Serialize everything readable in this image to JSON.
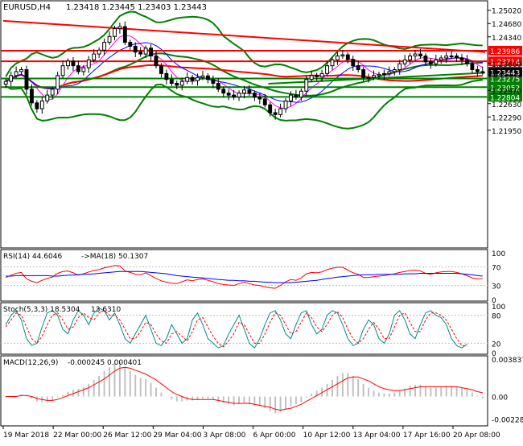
{
  "header": {
    "title": "EURUSD,H4",
    "ohlc": "1.23418 1.23445 1.23403 1.23443"
  },
  "chart_data": [
    {
      "type": "candlestick",
      "title": "EURUSD,H4",
      "price_ylim": [
        1.19,
        1.252
      ],
      "axis_ticks": [
        "1.25020",
        "1.24680",
        "1.24340",
        "1.23986",
        "1.23714",
        "1.23660",
        "1.23443",
        "1.23275",
        "1.23052",
        "1.22970",
        "1.22804",
        "1.22630",
        "1.22290",
        "1.21950"
      ],
      "x_tick_labels": [
        "19 Mar 2018",
        "22 Mar 00:00",
        "26 Mar 12:00",
        "29 Mar 04:00",
        "3 Apr 08:00",
        "6 Apr 00:00",
        "10 Apr 12:00",
        "13 Apr 04:00",
        "17 Apr 16:00",
        "20 Apr 08:00"
      ],
      "levels": [
        {
          "label": "1.23986",
          "value": 1.23986,
          "color": "#ff0000"
        },
        {
          "label": "1.23714",
          "value": 1.23714,
          "color": "#ff0000"
        },
        {
          "label": "1.23275",
          "value": 1.23275,
          "color": "#008000"
        },
        {
          "label": "1.23052",
          "value": 1.23052,
          "color": "#008000"
        },
        {
          "label": "1.22804",
          "value": 1.22804,
          "color": "#008000"
        }
      ],
      "current_price": {
        "label": "1.23443",
        "value": 1.23443
      },
      "trend_line": {
        "x": [
          0,
          100
        ],
        "y": [
          1.2475,
          1.2395
        ],
        "color": "#ff0000"
      },
      "support_line": {
        "x": [
          55,
          100
        ],
        "y": [
          1.2314,
          1.2342
        ],
        "color": "#008000"
      },
      "close": [
        1.232,
        1.2335,
        1.2345,
        1.235,
        1.23,
        1.2265,
        1.225,
        1.227,
        1.2285,
        1.23,
        1.2335,
        1.236,
        1.2372,
        1.236,
        1.2345,
        1.2355,
        1.2375,
        1.239,
        1.24,
        1.242,
        1.2435,
        1.2455,
        1.246,
        1.242,
        1.241,
        1.2395,
        1.239,
        1.2405,
        1.2385,
        1.236,
        1.234,
        1.2325,
        1.2315,
        1.231,
        1.232,
        1.233,
        1.2322,
        1.233,
        1.2334,
        1.2325,
        1.2315,
        1.23,
        1.229,
        1.2285,
        1.228,
        1.229,
        1.2298,
        1.229,
        1.228,
        1.2275,
        1.226,
        1.224,
        1.2235,
        1.225,
        1.227,
        1.2285,
        1.228,
        1.2295,
        1.2325,
        1.2335,
        1.2332,
        1.234,
        1.236,
        1.2375,
        1.2385,
        1.2388,
        1.2376,
        1.236,
        1.235,
        1.233,
        1.233,
        1.2335,
        1.2338,
        1.234,
        1.2345,
        1.235,
        1.2365,
        1.2375,
        1.2385,
        1.239,
        1.2385,
        1.237,
        1.2365,
        1.2375,
        1.238,
        1.2385,
        1.2385,
        1.238,
        1.2375,
        1.2365,
        1.235,
        1.2345,
        1.2344
      ],
      "line_colors": {
        "up": "#000000",
        "down": "#000000",
        "sma": "#008000",
        "bands": "#008000",
        "ema": "#ff0000"
      }
    },
    {
      "type": "line",
      "title": "RSI(14) 44.6046",
      "subtitle": "->MA(18) 50.1307",
      "ylim": [
        0,
        100
      ],
      "ticks": [
        "100",
        "70",
        "30",
        "0"
      ],
      "series": [
        {
          "name": "RSI(14)",
          "color": "#ff0000",
          "values": [
            47,
            52,
            56,
            58,
            44,
            39,
            36,
            41,
            45,
            48,
            56,
            60,
            61,
            57,
            52,
            55,
            59,
            62,
            64,
            68,
            70,
            73,
            72,
            61,
            58,
            54,
            53,
            57,
            51,
            45,
            40,
            37,
            35,
            34,
            38,
            42,
            40,
            43,
            44,
            41,
            38,
            34,
            32,
            31,
            30,
            34,
            37,
            34,
            31,
            30,
            27,
            25,
            24,
            30,
            38,
            43,
            41,
            46,
            55,
            58,
            57,
            59,
            64,
            67,
            69,
            69,
            63,
            57,
            54,
            47,
            47,
            49,
            50,
            51,
            53,
            55,
            58,
            60,
            62,
            63,
            61,
            56,
            54,
            57,
            59,
            60,
            60,
            58,
            55,
            51,
            46,
            44,
            44.6
          ]
        },
        {
          "name": "MA(18)",
          "color": "#0000ff",
          "values": [
            50,
            50,
            51,
            51,
            51,
            51,
            51,
            51,
            51,
            50,
            50,
            51,
            52,
            52,
            53,
            54,
            54,
            55,
            56,
            57,
            58,
            59,
            60,
            60,
            60,
            60,
            60,
            59,
            58,
            57,
            56,
            55,
            53,
            51,
            50,
            49,
            48,
            47,
            46,
            45,
            44,
            43,
            42,
            41,
            41,
            40,
            40,
            39,
            39,
            38,
            37,
            37,
            36,
            36,
            36,
            36,
            37,
            38,
            39,
            40,
            41,
            43,
            45,
            46,
            48,
            49,
            50,
            51,
            52,
            53,
            53,
            53,
            54,
            54,
            54,
            54,
            54,
            55,
            55,
            55,
            56,
            56,
            56,
            56,
            56,
            56,
            56,
            56,
            55,
            54,
            53,
            51,
            50.1
          ]
        }
      ]
    },
    {
      "type": "line",
      "title": "Stoch(5,3,3) 18.5304",
      "subtitle": "13.6310",
      "ylim": [
        0,
        100
      ],
      "ticks": [
        "100",
        "80",
        "20",
        "0"
      ],
      "series": [
        {
          "name": "%K",
          "color": "#008b8b",
          "values": [
            60,
            80,
            90,
            70,
            30,
            15,
            20,
            55,
            85,
            90,
            80,
            50,
            40,
            70,
            90,
            80,
            60,
            85,
            95,
            90,
            70,
            85,
            60,
            30,
            20,
            40,
            60,
            80,
            50,
            20,
            15,
            30,
            60,
            40,
            20,
            30,
            70,
            85,
            60,
            30,
            20,
            10,
            15,
            40,
            60,
            80,
            50,
            20,
            10,
            30,
            60,
            85,
            90,
            70,
            40,
            30,
            60,
            85,
            90,
            60,
            40,
            50,
            80,
            90,
            85,
            60,
            30,
            15,
            20,
            50,
            70,
            60,
            30,
            20,
            40,
            80,
            90,
            70,
            40,
            30,
            60,
            85,
            90,
            80,
            75,
            60,
            30,
            15,
            10,
            18.5
          ]
        },
        {
          "name": "%D",
          "color": "#ff0000",
          "values": [
            55,
            70,
            85,
            80,
            55,
            30,
            20,
            35,
            60,
            80,
            85,
            70,
            50,
            55,
            75,
            85,
            75,
            70,
            85,
            90,
            80,
            80,
            70,
            50,
            30,
            30,
            45,
            65,
            60,
            40,
            25,
            20,
            40,
            45,
            35,
            25,
            45,
            70,
            75,
            55,
            35,
            20,
            12,
            25,
            40,
            65,
            60,
            40,
            20,
            20,
            40,
            65,
            85,
            80,
            60,
            40,
            45,
            65,
            85,
            75,
            55,
            45,
            60,
            80,
            88,
            75,
            50,
            30,
            20,
            30,
            50,
            65,
            50,
            30,
            30,
            55,
            80,
            85,
            65,
            45,
            45,
            70,
            85,
            85,
            80,
            70,
            50,
            30,
            15,
            13.6
          ]
        }
      ]
    },
    {
      "type": "histogram",
      "title": "MACD(12,26,9)",
      "subtitle": "-0.000245 0.000401",
      "ylim": [
        -0.00284,
        0.003837
      ],
      "ticks": [
        "0.003837",
        "0.00",
        "-0.002284"
      ],
      "histogram": [
        -0.0001,
        0,
        0.0001,
        0.0002,
        0.0001,
        -0.0002,
        -0.0005,
        -0.0006,
        -0.0005,
        -0.0004,
        -0.0001,
        0.0002,
        0.0005,
        0.0007,
        0.0008,
        0.001,
        0.0013,
        0.0017,
        0.0021,
        0.0026,
        0.003,
        0.0034,
        0.0035,
        0.003,
        0.0026,
        0.0022,
        0.0019,
        0.0018,
        0.0014,
        0.0009,
        0.0004,
        0,
        -0.0003,
        -0.0005,
        -0.0005,
        -0.0004,
        -0.0004,
        -0.0003,
        -0.0002,
        -0.0002,
        -0.0003,
        -0.0005,
        -0.0007,
        -0.0008,
        -0.0009,
        -0.0008,
        -0.0007,
        -0.0008,
        -0.0009,
        -0.001,
        -0.0012,
        -0.0015,
        -0.0017,
        -0.0016,
        -0.0013,
        -0.001,
        -0.0008,
        -0.0006,
        -0.0001,
        0.0003,
        0.0006,
        0.0009,
        0.0013,
        0.0017,
        0.0021,
        0.0024,
        0.0024,
        0.0021,
        0.0018,
        0.0013,
        0.0009,
        0.0006,
        0.0004,
        0.0003,
        0.0003,
        0.0004,
        0.0006,
        0.0008,
        0.0011,
        0.0012,
        0.0012,
        0.001,
        0.0009,
        0.0009,
        0.001,
        0.0011,
        0.0011,
        0.001,
        0.0009,
        0.0007,
        0.0004,
        0.0001,
        -0.0002
      ],
      "signal": {
        "name": "Signal",
        "color": "#ff0000",
        "values": [
          0,
          0,
          0,
          0.0001,
          0.0001,
          0,
          -0.0002,
          -0.0003,
          -0.0004,
          -0.0004,
          -0.0003,
          -0.0001,
          0.0001,
          0.0003,
          0.0005,
          0.0007,
          0.0009,
          0.0012,
          0.0015,
          0.0018,
          0.0022,
          0.0026,
          0.0029,
          0.003,
          0.0029,
          0.0027,
          0.0025,
          0.0023,
          0.002,
          0.0017,
          0.0013,
          0.0009,
          0.0005,
          0.0002,
          0,
          -0.0002,
          -0.0003,
          -0.0003,
          -0.0003,
          -0.0003,
          -0.0003,
          -0.0004,
          -0.0005,
          -0.0006,
          -0.0007,
          -0.0007,
          -0.0007,
          -0.0007,
          -0.0008,
          -0.0009,
          -0.001,
          -0.0011,
          -0.0013,
          -0.0014,
          -0.0013,
          -0.0012,
          -0.001,
          -0.0008,
          -0.0005,
          -0.0002,
          0.0001,
          0.0004,
          0.0007,
          0.001,
          0.0013,
          0.0016,
          0.0019,
          0.002,
          0.002,
          0.0018,
          0.0016,
          0.0013,
          0.001,
          0.0008,
          0.0007,
          0.0006,
          0.0006,
          0.0007,
          0.0008,
          0.0009,
          0.001,
          0.001,
          0.001,
          0.001,
          0.001,
          0.001,
          0.001,
          0.001,
          0.0009,
          0.0008,
          0.0007,
          0.0005,
          0.0004
        ]
      }
    }
  ]
}
